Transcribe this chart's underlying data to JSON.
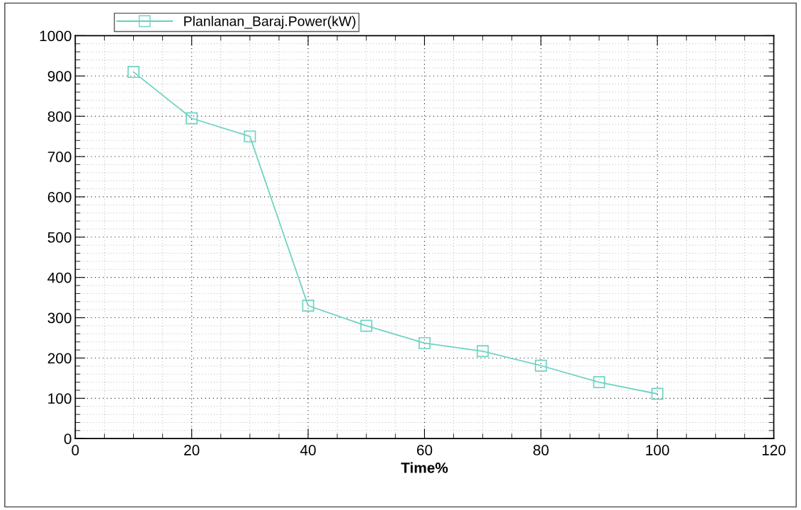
{
  "chart_data": {
    "type": "line",
    "xlabel": "Time%",
    "x": [
      10,
      20,
      30,
      40,
      50,
      60,
      70,
      80,
      90,
      100
    ],
    "series": [
      {
        "name": "Planlanan_Baraj.Power(kW)",
        "color": "#6fd3c3",
        "values": [
          910,
          795,
          750,
          330,
          280,
          237,
          217,
          181,
          140,
          111
        ]
      }
    ],
    "xlim": [
      0,
      120
    ],
    "xticks": [
      0,
      20,
      40,
      60,
      80,
      100,
      120
    ],
    "ylim": [
      0,
      1000
    ],
    "yticks": [
      0,
      100,
      200,
      300,
      400,
      500,
      600,
      700,
      800,
      900,
      1000
    ],
    "grid": true,
    "legend": "top left",
    "marker": "square",
    "line_style": "solid"
  }
}
